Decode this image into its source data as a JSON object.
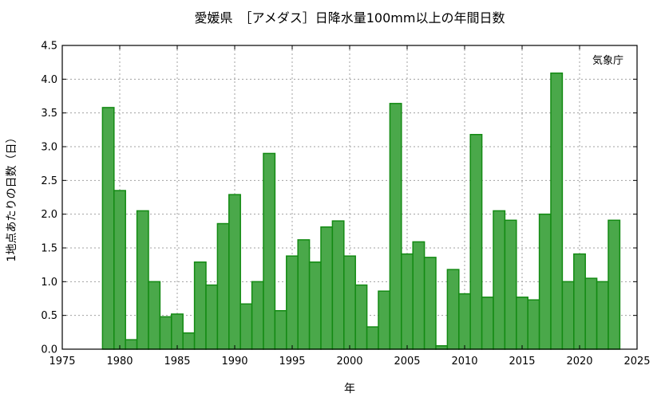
{
  "chart_data": {
    "type": "bar",
    "title": "愛媛県　［アメダス］日降水量100mm以上の年間日数",
    "xlabel": "年",
    "ylabel": "1地点あたりの日数（日）",
    "credit": "気象庁",
    "xlim": [
      1975,
      2025
    ],
    "ylim": [
      0,
      4.5
    ],
    "x_ticks": [
      "1975",
      "1980",
      "1985",
      "1990",
      "1995",
      "2000",
      "2005",
      "2010",
      "2015",
      "2020",
      "2025"
    ],
    "y_ticks": [
      "0.0",
      "0.5",
      "1.0",
      "1.5",
      "2.0",
      "2.5",
      "3.0",
      "3.5",
      "4.0",
      "4.5"
    ],
    "grid": true,
    "bar_color": "#4aa84a",
    "edge_color": "#138a13",
    "x": [
      1979,
      1980,
      1981,
      1982,
      1983,
      1984,
      1985,
      1986,
      1987,
      1988,
      1989,
      1990,
      1991,
      1992,
      1993,
      1994,
      1995,
      1996,
      1997,
      1998,
      1999,
      2000,
      2001,
      2002,
      2003,
      2004,
      2005,
      2006,
      2007,
      2008,
      2009,
      2010,
      2011,
      2012,
      2013,
      2014,
      2015,
      2016,
      2017,
      2018,
      2019,
      2020,
      2021,
      2022,
      2023
    ],
    "values": [
      3.58,
      2.35,
      0.14,
      2.05,
      1.0,
      0.48,
      0.52,
      0.24,
      1.29,
      0.95,
      1.86,
      2.29,
      0.67,
      1.0,
      2.9,
      0.57,
      1.38,
      1.62,
      1.29,
      1.81,
      1.9,
      1.38,
      0.95,
      0.33,
      0.86,
      3.64,
      1.41,
      1.59,
      1.36,
      0.05,
      1.18,
      0.82,
      3.18,
      0.77,
      2.05,
      1.91,
      0.77,
      0.73,
      2.0,
      4.09,
      1.0,
      1.41,
      1.05,
      1.0,
      1.91
    ]
  }
}
